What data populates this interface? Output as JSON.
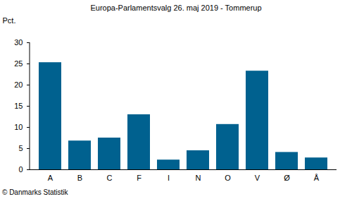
{
  "chart_data": {
    "type": "bar",
    "title": "Europa-Parlamentsvalg 26. maj 2019 - Tommerup",
    "categories": [
      "A",
      "B",
      "C",
      "F",
      "I",
      "N",
      "O",
      "V",
      "Ø",
      "Å"
    ],
    "values": [
      25.3,
      6.8,
      7.5,
      13.0,
      2.3,
      4.5,
      10.7,
      23.3,
      4.1,
      2.8
    ],
    "color": "#00618f",
    "ylabel": "Pct.",
    "ylim": [
      0,
      30
    ],
    "yticks": [
      0,
      5,
      10,
      15,
      20,
      25,
      30
    ],
    "grid": false,
    "caption": "© Danmarks Statistik"
  }
}
